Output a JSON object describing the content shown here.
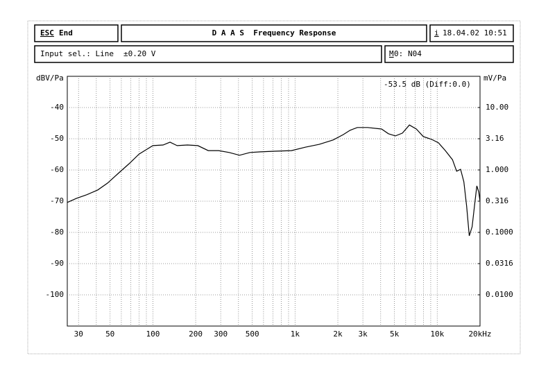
{
  "header": {
    "esc_key": "ESC",
    "esc_label": "End",
    "title": "D A A S  Frequency Response",
    "info_key": "i",
    "datetime": "18.04.02 10:51",
    "input": "Input sel.: Line",
    "voltage": "±0.20 V",
    "mem_key": "M",
    "mem_rest": "0:",
    "mem_value": "N04"
  },
  "chart_data": {
    "type": "line",
    "xscale": "log",
    "y2scale": "log",
    "grid": true,
    "ylabel": "dBV/Pa",
    "y2label": "mV/Pa",
    "annotation": "-53.5 dB (Diff:0.0)",
    "xlim": [
      25,
      20000
    ],
    "ylim": [
      -110,
      -30
    ],
    "y2lim": [
      0.00316,
      31.6
    ],
    "xticks": [
      30,
      50,
      100,
      200,
      300,
      500,
      {
        "value": 1000,
        "label": "1k"
      },
      {
        "value": 2000,
        "label": "2k"
      },
      {
        "value": 3000,
        "label": "3k"
      },
      {
        "value": 5000,
        "label": "5k"
      },
      {
        "value": 10000,
        "label": "10k"
      },
      {
        "value": 20000,
        "label": "20kHz"
      }
    ],
    "xminorticks": [
      40,
      60,
      70,
      80,
      90,
      400,
      600,
      700,
      800,
      900,
      4000,
      6000,
      7000,
      8000,
      9000
    ],
    "yticks": [
      -40,
      -50,
      -60,
      -70,
      -80,
      -90,
      -100
    ],
    "y2ticks": [
      {
        "value": 10,
        "label": "10.00"
      },
      3.16,
      {
        "value": 1,
        "label": "1.000"
      },
      0.316,
      {
        "value": 0.1,
        "label": "0.1000"
      },
      0.0316,
      {
        "value": 0.01,
        "label": "0.0100"
      }
    ],
    "x": [
      25,
      29,
      34,
      41,
      48,
      57,
      68,
      80,
      89,
      100,
      118,
      132,
      148,
      175,
      207,
      245,
      290,
      344,
      407,
      482,
      570,
      714,
      944,
      1180,
      1480,
      1850,
      2180,
      2440,
      2740,
      3240,
      4060,
      4540,
      5080,
      5690,
      6370,
      7130,
      7980,
      9130,
      10200,
      11400,
      12800,
      13700,
      14600,
      15400,
      16100,
      16800,
      17600,
      18400,
      19000,
      19600,
      20000
    ],
    "series": [
      {
        "color": "#000000",
        "values": [
          -70.4,
          -69.1,
          -68,
          -66.4,
          -64.2,
          -61.1,
          -58,
          -54.9,
          -53.6,
          -52.2,
          -52,
          -51.1,
          -52.2,
          -52,
          -52.2,
          -53.8,
          -53.8,
          -54.4,
          -55.3,
          -54.4,
          -54.2,
          -54,
          -53.8,
          -52.7,
          -51.8,
          -50.4,
          -48.7,
          -47.3,
          -46.4,
          -46.4,
          -46.9,
          -48.4,
          -49.1,
          -48.2,
          -45.6,
          -46.9,
          -49.3,
          -50.2,
          -51.3,
          -53.8,
          -56.7,
          -60.4,
          -59.8,
          -63.8,
          -71.6,
          -81.1,
          -78.2,
          -70.4,
          -65.1,
          -67.1,
          -70
        ]
      }
    ]
  }
}
